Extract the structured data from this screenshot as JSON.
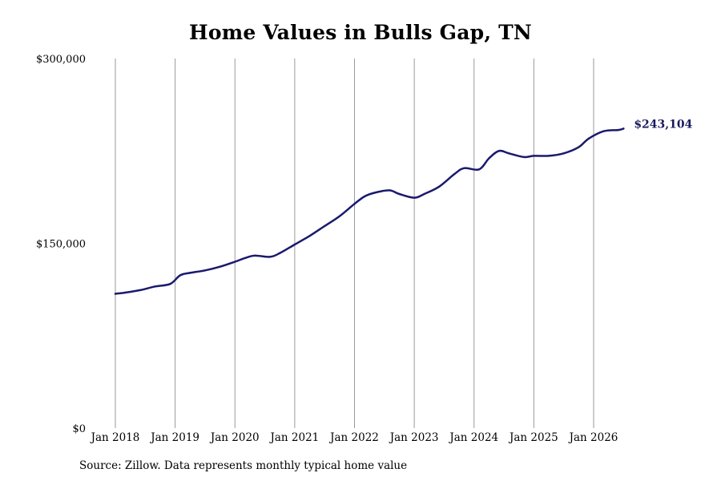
{
  "chart_data": {
    "type": "line",
    "title": "Home Values in Bulls Gap, TN",
    "xlabel": "",
    "ylabel": "",
    "source": "Source: Zillow. Data represents monthly typical home value",
    "ylim": [
      0,
      300000
    ],
    "y_ticks": [
      {
        "value": 0,
        "label": "$0"
      },
      {
        "value": 150000,
        "label": "$150,000"
      },
      {
        "value": 300000,
        "label": "$300,000"
      }
    ],
    "x_ticks": [
      "Jan 2018",
      "Jan 2019",
      "Jan 2020",
      "Jan 2021",
      "Jan 2022",
      "Jan 2023",
      "Jan 2024",
      "Jan 2025",
      "Jan 2026"
    ],
    "grid": "vertical",
    "line_color": "#1a1a6e",
    "end_label": "$243,104",
    "series": [
      {
        "x": [
          "2018-01",
          "2018-03",
          "2018-06",
          "2018-09",
          "2018-12",
          "2019-02",
          "2019-04",
          "2019-07",
          "2019-10",
          "2020-01",
          "2020-03",
          "2020-05",
          "2020-08",
          "2020-10",
          "2021-01",
          "2021-04",
          "2021-07",
          "2021-10",
          "2022-01",
          "2022-03",
          "2022-05",
          "2022-08",
          "2022-10",
          "2023-01",
          "2023-03",
          "2023-06",
          "2023-09",
          "2023-11",
          "2024-02",
          "2024-04",
          "2024-06",
          "2024-08",
          "2024-11",
          "2025-01",
          "2025-04",
          "2025-07",
          "2025-10",
          "2025-12",
          "2026-03",
          "2026-06",
          "2026-07"
        ],
        "values": [
          109000,
          110000,
          112000,
          115000,
          117000,
          124000,
          126000,
          128000,
          131000,
          135000,
          138000,
          140000,
          139000,
          142000,
          149000,
          156000,
          164000,
          172000,
          182000,
          188000,
          191000,
          193000,
          190000,
          187000,
          190000,
          196000,
          206000,
          211000,
          210000,
          219000,
          225000,
          223000,
          220000,
          221000,
          221000,
          223000,
          228000,
          235000,
          241000,
          242000,
          243104
        ]
      }
    ]
  }
}
